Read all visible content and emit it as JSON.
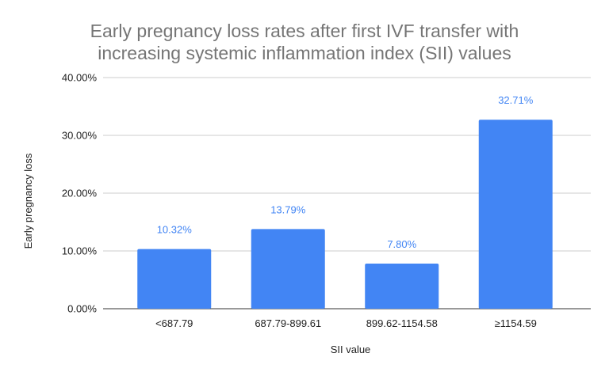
{
  "chart_data": {
    "type": "bar",
    "title_lines": [
      "Early pregnancy loss rates after first IVF transfer with",
      "increasing systemic inflammation index (SII) values"
    ],
    "xlabel": "SII value",
    "ylabel": "Early pregnancy loss",
    "categories": [
      "<687.79",
      "687.79-899.61",
      "899.62-1154.58",
      "≥1154.59"
    ],
    "values": [
      10.32,
      13.79,
      7.8,
      32.71
    ],
    "value_labels": [
      "10.32%",
      "13.79%",
      "7.80%",
      "32.71%"
    ],
    "ylim": [
      0,
      40
    ],
    "yticks": [
      0,
      10,
      20,
      30,
      40
    ],
    "ytick_labels": [
      "0.00%",
      "10.00%",
      "20.00%",
      "30.00%",
      "40.00%"
    ],
    "grid": true,
    "legend": "none",
    "bar_color": "#4285f4",
    "label_color": "#4285f4"
  }
}
